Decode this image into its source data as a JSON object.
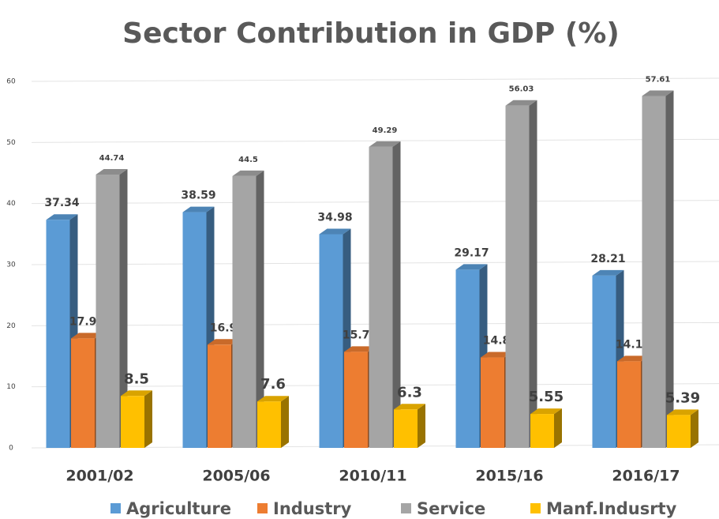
{
  "chart_data": {
    "type": "bar",
    "title": "Sector Contribution in GDP (%)",
    "categories": [
      "2001/02",
      "2005/06",
      "2010/11",
      "2015/16",
      "2016/17"
    ],
    "series": [
      {
        "name": "Agriculture",
        "color": "#5b9bd5",
        "values": [
          37.34,
          38.59,
          34.98,
          29.17,
          28.21
        ]
      },
      {
        "name": "Industry",
        "color": "#ed7d31",
        "values": [
          17.92,
          16.9,
          15.73,
          14.8,
          14.18
        ]
      },
      {
        "name": "Service",
        "color": "#a5a5a5",
        "values": [
          44.74,
          44.5,
          49.29,
          56.03,
          57.61
        ]
      },
      {
        "name": "Manf.Indusrty",
        "color": "#ffc000",
        "values": [
          8.5,
          7.6,
          6.3,
          5.55,
          5.39
        ]
      }
    ],
    "ylim": [
      0,
      60
    ],
    "yticks": [
      0,
      10,
      20,
      30,
      40,
      50,
      60
    ],
    "grid": true,
    "legend": "bottom"
  }
}
